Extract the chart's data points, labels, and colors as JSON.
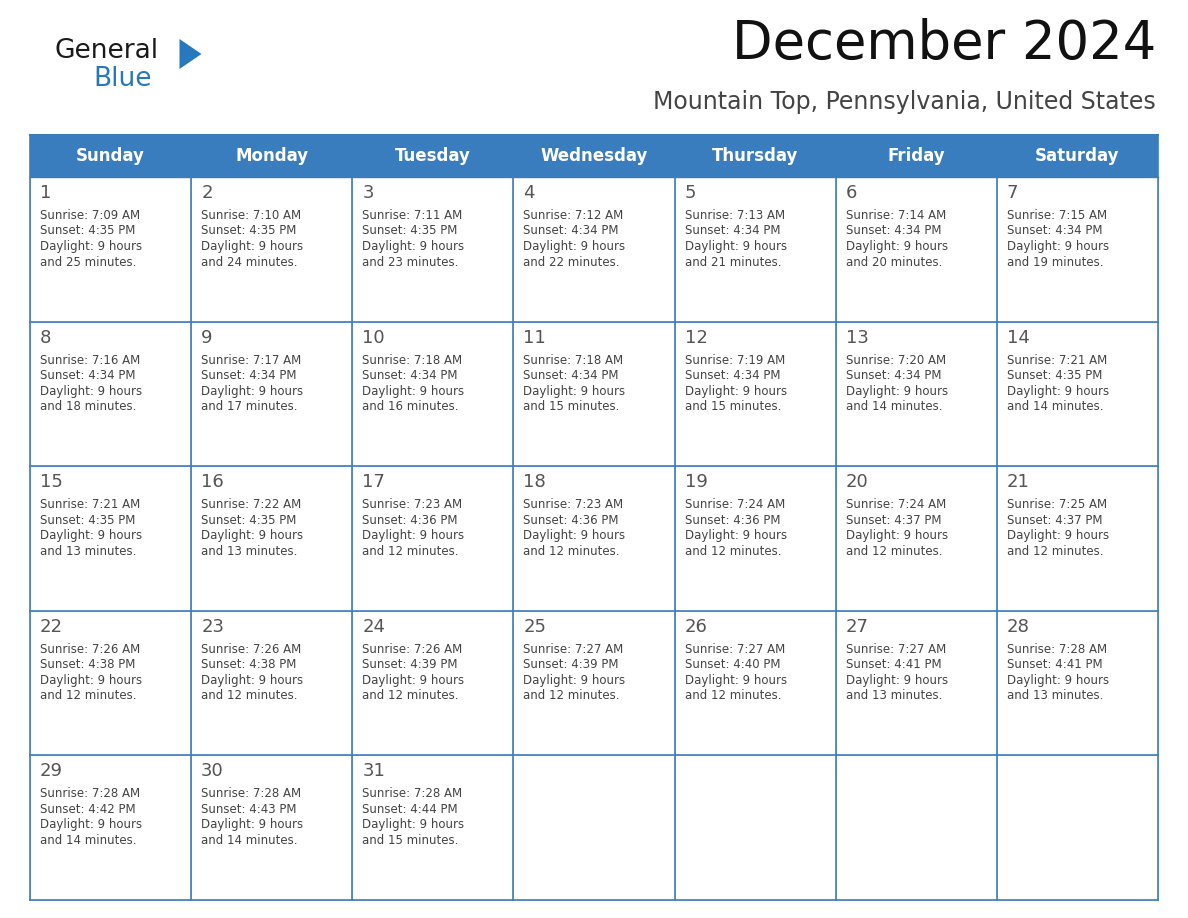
{
  "title": "December 2024",
  "subtitle": "Mountain Top, Pennsylvania, United States",
  "header_color": "#3a7dbf",
  "header_text_color": "#ffffff",
  "cell_bg_color": "#ffffff",
  "border_color": "#3a7dbf",
  "day_number_color": "#555555",
  "text_color": "#444444",
  "days_of_week": [
    "Sunday",
    "Monday",
    "Tuesday",
    "Wednesday",
    "Thursday",
    "Friday",
    "Saturday"
  ],
  "weeks": [
    [
      {
        "day": 1,
        "sunrise": "7:09 AM",
        "sunset": "4:35 PM",
        "daylight_hours": 9,
        "daylight_minutes": 25
      },
      {
        "day": 2,
        "sunrise": "7:10 AM",
        "sunset": "4:35 PM",
        "daylight_hours": 9,
        "daylight_minutes": 24
      },
      {
        "day": 3,
        "sunrise": "7:11 AM",
        "sunset": "4:35 PM",
        "daylight_hours": 9,
        "daylight_minutes": 23
      },
      {
        "day": 4,
        "sunrise": "7:12 AM",
        "sunset": "4:34 PM",
        "daylight_hours": 9,
        "daylight_minutes": 22
      },
      {
        "day": 5,
        "sunrise": "7:13 AM",
        "sunset": "4:34 PM",
        "daylight_hours": 9,
        "daylight_minutes": 21
      },
      {
        "day": 6,
        "sunrise": "7:14 AM",
        "sunset": "4:34 PM",
        "daylight_hours": 9,
        "daylight_minutes": 20
      },
      {
        "day": 7,
        "sunrise": "7:15 AM",
        "sunset": "4:34 PM",
        "daylight_hours": 9,
        "daylight_minutes": 19
      }
    ],
    [
      {
        "day": 8,
        "sunrise": "7:16 AM",
        "sunset": "4:34 PM",
        "daylight_hours": 9,
        "daylight_minutes": 18
      },
      {
        "day": 9,
        "sunrise": "7:17 AM",
        "sunset": "4:34 PM",
        "daylight_hours": 9,
        "daylight_minutes": 17
      },
      {
        "day": 10,
        "sunrise": "7:18 AM",
        "sunset": "4:34 PM",
        "daylight_hours": 9,
        "daylight_minutes": 16
      },
      {
        "day": 11,
        "sunrise": "7:18 AM",
        "sunset": "4:34 PM",
        "daylight_hours": 9,
        "daylight_minutes": 15
      },
      {
        "day": 12,
        "sunrise": "7:19 AM",
        "sunset": "4:34 PM",
        "daylight_hours": 9,
        "daylight_minutes": 15
      },
      {
        "day": 13,
        "sunrise": "7:20 AM",
        "sunset": "4:34 PM",
        "daylight_hours": 9,
        "daylight_minutes": 14
      },
      {
        "day": 14,
        "sunrise": "7:21 AM",
        "sunset": "4:35 PM",
        "daylight_hours": 9,
        "daylight_minutes": 14
      }
    ],
    [
      {
        "day": 15,
        "sunrise": "7:21 AM",
        "sunset": "4:35 PM",
        "daylight_hours": 9,
        "daylight_minutes": 13
      },
      {
        "day": 16,
        "sunrise": "7:22 AM",
        "sunset": "4:35 PM",
        "daylight_hours": 9,
        "daylight_minutes": 13
      },
      {
        "day": 17,
        "sunrise": "7:23 AM",
        "sunset": "4:36 PM",
        "daylight_hours": 9,
        "daylight_minutes": 12
      },
      {
        "day": 18,
        "sunrise": "7:23 AM",
        "sunset": "4:36 PM",
        "daylight_hours": 9,
        "daylight_minutes": 12
      },
      {
        "day": 19,
        "sunrise": "7:24 AM",
        "sunset": "4:36 PM",
        "daylight_hours": 9,
        "daylight_minutes": 12
      },
      {
        "day": 20,
        "sunrise": "7:24 AM",
        "sunset": "4:37 PM",
        "daylight_hours": 9,
        "daylight_minutes": 12
      },
      {
        "day": 21,
        "sunrise": "7:25 AM",
        "sunset": "4:37 PM",
        "daylight_hours": 9,
        "daylight_minutes": 12
      }
    ],
    [
      {
        "day": 22,
        "sunrise": "7:26 AM",
        "sunset": "4:38 PM",
        "daylight_hours": 9,
        "daylight_minutes": 12
      },
      {
        "day": 23,
        "sunrise": "7:26 AM",
        "sunset": "4:38 PM",
        "daylight_hours": 9,
        "daylight_minutes": 12
      },
      {
        "day": 24,
        "sunrise": "7:26 AM",
        "sunset": "4:39 PM",
        "daylight_hours": 9,
        "daylight_minutes": 12
      },
      {
        "day": 25,
        "sunrise": "7:27 AM",
        "sunset": "4:39 PM",
        "daylight_hours": 9,
        "daylight_minutes": 12
      },
      {
        "day": 26,
        "sunrise": "7:27 AM",
        "sunset": "4:40 PM",
        "daylight_hours": 9,
        "daylight_minutes": 12
      },
      {
        "day": 27,
        "sunrise": "7:27 AM",
        "sunset": "4:41 PM",
        "daylight_hours": 9,
        "daylight_minutes": 13
      },
      {
        "day": 28,
        "sunrise": "7:28 AM",
        "sunset": "4:41 PM",
        "daylight_hours": 9,
        "daylight_minutes": 13
      }
    ],
    [
      {
        "day": 29,
        "sunrise": "7:28 AM",
        "sunset": "4:42 PM",
        "daylight_hours": 9,
        "daylight_minutes": 14
      },
      {
        "day": 30,
        "sunrise": "7:28 AM",
        "sunset": "4:43 PM",
        "daylight_hours": 9,
        "daylight_minutes": 14
      },
      {
        "day": 31,
        "sunrise": "7:28 AM",
        "sunset": "4:44 PM",
        "daylight_hours": 9,
        "daylight_minutes": 15
      },
      null,
      null,
      null,
      null
    ]
  ],
  "logo_general_color": "#1a1a1a",
  "logo_blue_color": "#2878be",
  "logo_triangle_color": "#2878be",
  "title_fontsize": 38,
  "subtitle_fontsize": 17,
  "header_fontsize": 12,
  "day_num_fontsize": 13,
  "cell_text_fontsize": 8.5
}
